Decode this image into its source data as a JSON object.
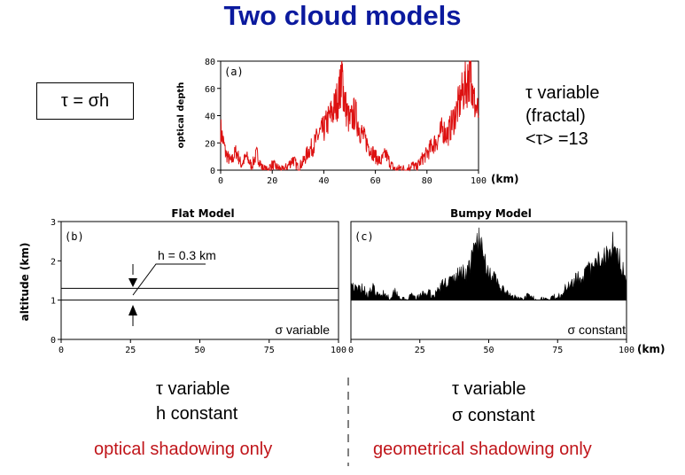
{
  "title": "Two cloud models",
  "formula": "τ = σh",
  "top_note": {
    "line1": "τ variable",
    "line2": "(fractal)",
    "line3": "<τ> =13"
  },
  "chart_data": [
    {
      "type": "line",
      "panel_label": "(a)",
      "ylabel": "optical depth",
      "xunit": "(km)",
      "xlim": [
        0,
        100
      ],
      "ylim": [
        0,
        80
      ],
      "xticks": [
        "0",
        "20",
        "40",
        "60",
        "80",
        "100"
      ],
      "yticks": [
        "0",
        "20",
        "40",
        "60",
        "80"
      ],
      "series_color": "#dd1111",
      "x": [
        0,
        2,
        4,
        6,
        8,
        10,
        12,
        14,
        16,
        18,
        20,
        22,
        24,
        26,
        28,
        30,
        32,
        34,
        36,
        38,
        40,
        42,
        44,
        46,
        47,
        48,
        50,
        52,
        54,
        56,
        58,
        60,
        62,
        64,
        66,
        68,
        70,
        72,
        74,
        76,
        78,
        80,
        82,
        84,
        86,
        88,
        90,
        92,
        94,
        96,
        97,
        98,
        100
      ],
      "y": [
        30,
        12,
        6,
        14,
        4,
        10,
        3,
        12,
        2,
        0,
        4,
        2,
        0,
        3,
        8,
        2,
        6,
        14,
        18,
        26,
        30,
        38,
        45,
        56,
        72,
        50,
        35,
        42,
        30,
        22,
        16,
        10,
        6,
        12,
        4,
        0,
        2,
        0,
        4,
        2,
        8,
        12,
        18,
        22,
        30,
        26,
        36,
        46,
        58,
        66,
        74,
        52,
        40
      ]
    },
    {
      "type": "area",
      "title": "Flat Model",
      "panel_label": "(b)",
      "ylabel": "altitude (km)",
      "xlim": [
        0,
        100
      ],
      "ylim": [
        0,
        3
      ],
      "xticks": [
        "0",
        "25",
        "50",
        "75",
        "100"
      ],
      "yticks": [
        "0",
        "1",
        "2",
        "3"
      ],
      "cloud_base": 1,
      "cloud_top": 1.3,
      "annotation": "h = 0.3 km",
      "corner_note": "σ variable"
    },
    {
      "type": "area",
      "title": "Bumpy Model",
      "panel_label": "(c)",
      "xunit": "(km)",
      "xlim": [
        0,
        100
      ],
      "ylim": [
        0,
        3
      ],
      "xticks": [
        "0",
        "25",
        "50",
        "75",
        "100"
      ],
      "cloud_base": 1,
      "x": [
        0,
        2,
        4,
        6,
        8,
        10,
        12,
        14,
        16,
        18,
        20,
        22,
        24,
        26,
        28,
        30,
        32,
        34,
        36,
        38,
        40,
        42,
        44,
        46,
        48,
        50,
        52,
        54,
        56,
        58,
        60,
        62,
        64,
        66,
        68,
        70,
        72,
        74,
        76,
        78,
        80,
        82,
        84,
        86,
        88,
        90,
        92,
        94,
        96,
        98,
        100
      ],
      "y": [
        1.45,
        1.25,
        1.35,
        1.15,
        1.3,
        1.1,
        1.2,
        1.05,
        1.25,
        1.05,
        1.0,
        1.1,
        1.05,
        1.15,
        1.2,
        1.1,
        1.3,
        1.45,
        1.5,
        1.55,
        1.75,
        1.7,
        2.05,
        2.6,
        2.15,
        1.75,
        1.55,
        1.35,
        1.2,
        1.1,
        1.05,
        1.0,
        1.1,
        1.05,
        1.0,
        1.05,
        1.0,
        1.1,
        1.15,
        1.3,
        1.5,
        1.55,
        1.6,
        1.75,
        1.8,
        2.0,
        2.2,
        2.35,
        2.55,
        1.9,
        1.6
      ],
      "corner_note": "σ constant"
    }
  ],
  "bottom_left": {
    "line1": "τ variable",
    "line2": "h constant",
    "caption": "optical shadowing only"
  },
  "bottom_right": {
    "line1": "τ variable",
    "line2": "σ constant",
    "caption": "geometrical shadowing only"
  }
}
